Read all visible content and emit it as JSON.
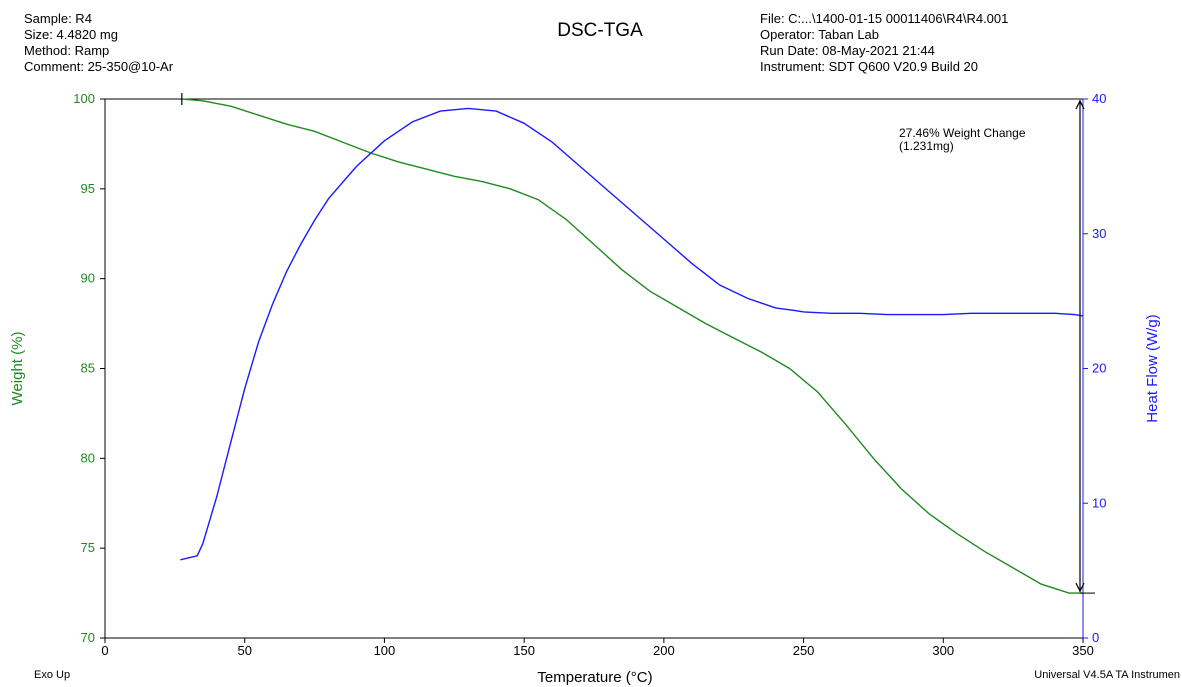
{
  "header_left": {
    "sample": "Sample: R4",
    "size": "Size:  4.4820 mg",
    "method": "Method: Ramp",
    "comment": "Comment: 25-350@10-Ar"
  },
  "header_right": {
    "file": "File: C:...\\1400-01-15 00011406\\R4\\R4.001",
    "operator": "Operator: Taban Lab",
    "run_date": "Run Date: 08-May-2021 21:44",
    "instrument": "Instrument: SDT Q600 V20.9 Build 20"
  },
  "footer": {
    "left": "Exo Up",
    "right": "Universal V4.5A TA Instrumen"
  },
  "colors": {
    "weight": "#1f8a1f",
    "heat_flow": "#1a1aff",
    "axis": "#000000"
  },
  "chart_data": {
    "type": "line",
    "title": "DSC-TGA",
    "xlabel": "Temperature (°C)",
    "xlim": [
      0,
      350
    ],
    "x_ticks": [
      0,
      50,
      100,
      150,
      200,
      250,
      300,
      350
    ],
    "grid": false,
    "y_left": {
      "label": "Weight (%)",
      "lim": [
        70,
        100
      ],
      "ticks": [
        70,
        75,
        80,
        85,
        90,
        95,
        100
      ]
    },
    "y_right": {
      "label": "Heat Flow (W/g)",
      "lim": [
        0,
        40
      ],
      "ticks": [
        0,
        10,
        20,
        30,
        40
      ]
    },
    "series": [
      {
        "axis": "left",
        "x": [
          27.5,
          35,
          45,
          55,
          65,
          75,
          85,
          95,
          105,
          115,
          125,
          135,
          145,
          155,
          165,
          175,
          185,
          195,
          205,
          215,
          225,
          235,
          245,
          255,
          265,
          275,
          285,
          295,
          305,
          315,
          325,
          335,
          345,
          350
        ],
        "values": [
          100.0,
          99.9,
          99.6,
          99.1,
          98.6,
          98.2,
          97.6,
          97.0,
          96.5,
          96.1,
          95.7,
          95.4,
          95.0,
          94.4,
          93.3,
          91.9,
          90.5,
          89.3,
          88.4,
          87.5,
          86.7,
          85.9,
          85.0,
          83.7,
          81.9,
          80.0,
          78.3,
          76.9,
          75.8,
          74.8,
          73.9,
          73.0,
          72.5,
          72.5
        ]
      },
      {
        "axis": "right",
        "x": [
          27,
          33,
          35,
          40,
          45,
          50,
          55,
          60,
          65,
          70,
          75,
          80,
          90,
          100,
          110,
          120,
          130,
          140,
          150,
          160,
          170,
          180,
          190,
          200,
          210,
          220,
          230,
          240,
          247,
          250,
          260,
          270,
          280,
          290,
          300,
          310,
          320,
          330,
          340,
          347,
          350
        ],
        "values": [
          5.8,
          6.1,
          7.0,
          10.5,
          14.5,
          18.5,
          22.0,
          24.8,
          27.2,
          29.2,
          31.0,
          32.6,
          35.0,
          36.9,
          38.3,
          39.1,
          39.3,
          39.1,
          38.2,
          36.8,
          35.0,
          33.2,
          31.4,
          29.6,
          27.8,
          26.2,
          25.2,
          24.5,
          24.3,
          24.2,
          24.1,
          24.1,
          24.0,
          24.0,
          24.0,
          24.1,
          24.1,
          24.1,
          24.1,
          24.0,
          23.9
        ]
      }
    ],
    "annotation": {
      "lines": [
        "27.46% Weight Change",
        "(1.231mg)"
      ],
      "x": 350,
      "weight_from": 100.0,
      "weight_to": 72.5
    }
  }
}
